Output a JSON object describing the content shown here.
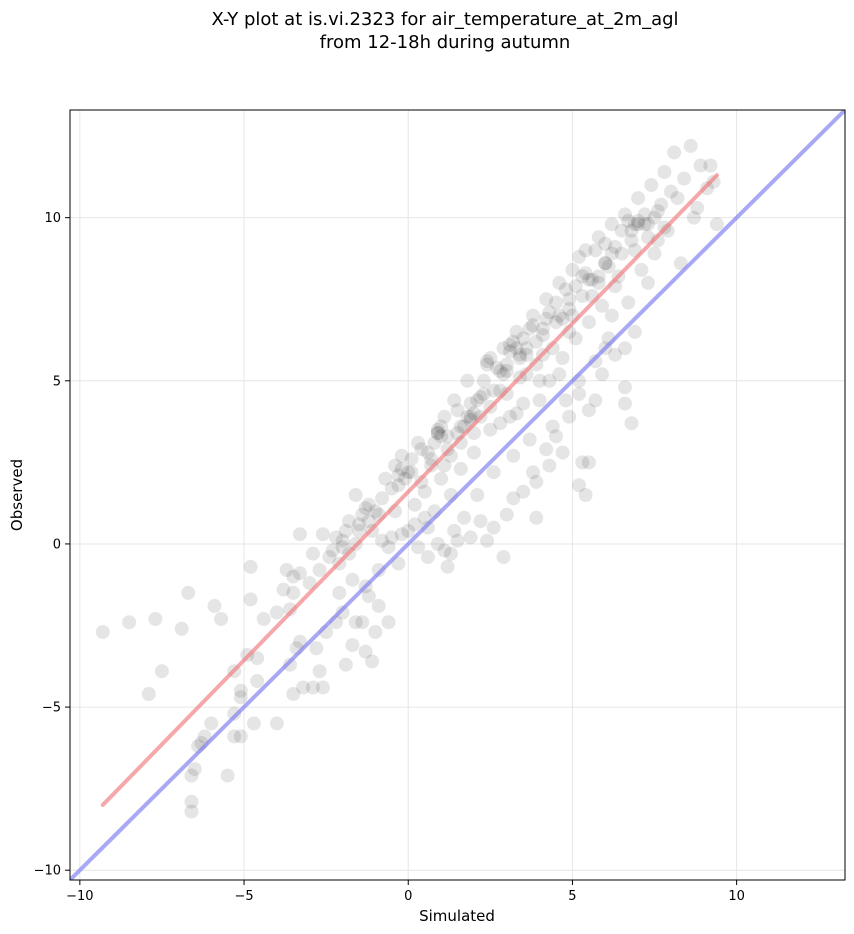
{
  "chart_data": {
    "type": "scatter",
    "title": "X-Y plot at is.vi.2323 for air_temperature_at_2m_agl",
    "subtitle": "from 12-18h during autumn",
    "xlabel": "Simulated",
    "ylabel": "Observed",
    "xlim": [
      -10.3,
      13.3
    ],
    "ylim": [
      -10.3,
      13.3
    ],
    "xticks": [
      -10,
      -5,
      0,
      5,
      10
    ],
    "yticks": [
      -10,
      -5,
      0,
      5,
      10
    ],
    "xtick_labels": [
      "−10",
      "−5",
      "0",
      "5",
      "10"
    ],
    "ytick_labels": [
      "−10",
      "−5",
      "0",
      "5",
      "10"
    ],
    "grid": true,
    "colors": {
      "points": "#000000",
      "fit_line": "#f0787c",
      "identity_line": "#7a7af0",
      "grid": "#e6e6e6"
    },
    "lines": [
      {
        "role": "fit",
        "x": [
          -9.3,
          9.4
        ],
        "y": [
          -8.0,
          11.3
        ]
      },
      {
        "role": "identity",
        "x": [
          -10.3,
          13.3
        ],
        "y": [
          -10.3,
          13.3
        ]
      }
    ],
    "points": [
      [
        -9.3,
        -2.7
      ],
      [
        -8.5,
        -2.4
      ],
      [
        -7.7,
        -2.3
      ],
      [
        -6.7,
        -1.5
      ],
      [
        -6.9,
        -2.6
      ],
      [
        -7.5,
        -3.9
      ],
      [
        -7.9,
        -4.6
      ],
      [
        -5.9,
        -1.9
      ],
      [
        -5.7,
        -2.3
      ],
      [
        -4.8,
        -0.7
      ],
      [
        -4.8,
        -1.7
      ],
      [
        -4.4,
        -2.3
      ],
      [
        -3.7,
        -0.8
      ],
      [
        -3.5,
        -1.5
      ],
      [
        -3.3,
        -0.9
      ],
      [
        -2.6,
        0.3
      ],
      [
        -3.3,
        0.3
      ],
      [
        -2.9,
        -0.3
      ],
      [
        -5.3,
        -3.9
      ],
      [
        -5.1,
        -4.5
      ],
      [
        -4.9,
        -3.4
      ],
      [
        -4.6,
        -4.2
      ],
      [
        -4.6,
        -3.5
      ],
      [
        -4.0,
        -5.5
      ],
      [
        -4.7,
        -5.5
      ],
      [
        -5.1,
        -4.7
      ],
      [
        -5.3,
        -5.2
      ],
      [
        -5.3,
        -5.9
      ],
      [
        -5.1,
        -5.9
      ],
      [
        -5.5,
        -7.1
      ],
      [
        -6.0,
        -5.5
      ],
      [
        -6.2,
        -5.9
      ],
      [
        -6.4,
        -6.2
      ],
      [
        -6.5,
        -6.9
      ],
      [
        -6.6,
        -7.1
      ],
      [
        -6.6,
        -7.9
      ],
      [
        -6.6,
        -8.2
      ],
      [
        -6.3,
        -6.1
      ],
      [
        -3.5,
        -4.6
      ],
      [
        -3.2,
        -4.4
      ],
      [
        -3.3,
        -3.0
      ],
      [
        -2.9,
        -4.4
      ],
      [
        -2.6,
        -4.4
      ],
      [
        -2.7,
        -3.9
      ],
      [
        -3.6,
        -3.7
      ],
      [
        -3.4,
        -3.2
      ],
      [
        -2.8,
        -3.2
      ],
      [
        -2.5,
        -2.7
      ],
      [
        -2.2,
        -2.4
      ],
      [
        -1.9,
        -3.7
      ],
      [
        -1.7,
        -3.1
      ],
      [
        -1.3,
        -3.3
      ],
      [
        -1.1,
        -3.6
      ],
      [
        -1.0,
        -2.7
      ],
      [
        -1.4,
        -2.4
      ],
      [
        -0.9,
        -1.9
      ],
      [
        -0.6,
        -2.4
      ],
      [
        -1.2,
        -1.6
      ],
      [
        -1.7,
        -1.1
      ],
      [
        -2.1,
        -1.5
      ],
      [
        -2.0,
        -2.1
      ],
      [
        -1.6,
        -2.4
      ],
      [
        -1.3,
        -1.3
      ],
      [
        -0.9,
        -0.8
      ],
      [
        -0.3,
        -0.6
      ],
      [
        -3.8,
        -1.4
      ],
      [
        -3.6,
        -2.0
      ],
      [
        -4.0,
        -2.1
      ],
      [
        -3.5,
        -1.0
      ],
      [
        -3.0,
        -1.2
      ],
      [
        -2.7,
        -0.8
      ],
      [
        -2.4,
        -0.4
      ],
      [
        -2.1,
        -0.6
      ],
      [
        -2.0,
        -0.1
      ],
      [
        -1.9,
        0.4
      ],
      [
        -1.6,
        0.0
      ],
      [
        -1.5,
        0.6
      ],
      [
        -1.3,
        1.1
      ],
      [
        -1.6,
        1.5
      ],
      [
        -1.1,
        0.4
      ],
      [
        -0.9,
        0.9
      ],
      [
        -0.8,
        1.4
      ],
      [
        -0.7,
        2.0
      ],
      [
        -0.5,
        0.2
      ],
      [
        -0.4,
        1.0
      ],
      [
        -0.3,
        1.8
      ],
      [
        -0.4,
        2.4
      ],
      [
        -0.2,
        2.7
      ],
      [
        0.0,
        0.4
      ],
      [
        0.2,
        1.2
      ],
      [
        0.1,
        2.2
      ],
      [
        0.3,
        3.1
      ],
      [
        0.5,
        1.6
      ],
      [
        0.6,
        0.5
      ],
      [
        0.8,
        1.0
      ],
      [
        0.7,
        2.4
      ],
      [
        0.9,
        3.4
      ],
      [
        1.0,
        2.0
      ],
      [
        1.1,
        3.9
      ],
      [
        1.2,
        2.9
      ],
      [
        1.3,
        1.5
      ],
      [
        1.4,
        4.4
      ],
      [
        1.5,
        3.4
      ],
      [
        1.6,
        2.3
      ],
      [
        1.8,
        5.0
      ],
      [
        1.9,
        3.9
      ],
      [
        2.0,
        2.8
      ],
      [
        2.1,
        1.5
      ],
      [
        2.2,
        4.5
      ],
      [
        2.4,
        5.6
      ],
      [
        2.5,
        3.5
      ],
      [
        2.6,
        2.2
      ],
      [
        2.8,
        4.7
      ],
      [
        2.9,
        6.0
      ],
      [
        3.0,
        5.3
      ],
      [
        3.1,
        3.9
      ],
      [
        3.2,
        2.7
      ],
      [
        3.3,
        6.5
      ],
      [
        3.4,
        5.1
      ],
      [
        3.5,
        4.3
      ],
      [
        3.6,
        6.0
      ],
      [
        3.7,
        3.2
      ],
      [
        3.8,
        7.0
      ],
      [
        3.9,
        5.5
      ],
      [
        4.0,
        4.4
      ],
      [
        4.1,
        6.4
      ],
      [
        4.2,
        7.5
      ],
      [
        4.3,
        5.0
      ],
      [
        4.4,
        3.6
      ],
      [
        4.5,
        6.8
      ],
      [
        4.6,
        8.0
      ],
      [
        4.7,
        5.7
      ],
      [
        4.8,
        4.4
      ],
      [
        4.9,
        7.2
      ],
      [
        5.0,
        8.4
      ],
      [
        5.1,
        6.3
      ],
      [
        5.2,
        5.0
      ],
      [
        5.3,
        7.6
      ],
      [
        5.4,
        9.0
      ],
      [
        5.5,
        6.8
      ],
      [
        5.6,
        8.1
      ],
      [
        5.7,
        5.6
      ],
      [
        5.8,
        9.4
      ],
      [
        5.9,
        7.3
      ],
      [
        6.0,
        8.6
      ],
      [
        6.1,
        6.3
      ],
      [
        6.2,
        9.8
      ],
      [
        6.3,
        7.9
      ],
      [
        6.5,
        8.9
      ],
      [
        6.6,
        10.1
      ],
      [
        6.7,
        7.4
      ],
      [
        6.8,
        9.3
      ],
      [
        7.0,
        10.6
      ],
      [
        7.1,
        8.4
      ],
      [
        7.2,
        9.8
      ],
      [
        7.4,
        11.0
      ],
      [
        7.5,
        8.9
      ],
      [
        7.6,
        10.2
      ],
      [
        7.8,
        11.4
      ],
      [
        7.9,
        9.6
      ],
      [
        8.1,
        12.0
      ],
      [
        8.2,
        10.6
      ],
      [
        8.4,
        11.2
      ],
      [
        8.6,
        12.2
      ],
      [
        8.7,
        10.0
      ],
      [
        8.9,
        11.6
      ],
      [
        9.1,
        10.9
      ],
      [
        9.2,
        11.6
      ],
      [
        9.4,
        9.8
      ],
      [
        9.3,
        11.1
      ],
      [
        8.8,
        10.3
      ],
      [
        8.3,
        8.6
      ],
      [
        7.6,
        9.3
      ],
      [
        7.3,
        8.0
      ],
      [
        6.9,
        6.5
      ],
      [
        6.6,
        6.0
      ],
      [
        6.2,
        7.0
      ],
      [
        5.9,
        5.2
      ],
      [
        5.7,
        4.4
      ],
      [
        5.5,
        4.1
      ],
      [
        5.3,
        2.5
      ],
      [
        5.4,
        1.5
      ],
      [
        5.2,
        1.8
      ],
      [
        5.5,
        2.5
      ],
      [
        6.8,
        3.7
      ],
      [
        6.6,
        4.8
      ],
      [
        6.6,
        4.3
      ],
      [
        6.3,
        5.8
      ],
      [
        6.0,
        6.0
      ],
      [
        5.2,
        4.6
      ],
      [
        4.9,
        3.9
      ],
      [
        4.5,
        3.3
      ],
      [
        4.3,
        2.4
      ],
      [
        4.7,
        2.8
      ],
      [
        4.2,
        2.9
      ],
      [
        3.8,
        2.2
      ],
      [
        3.9,
        1.9
      ],
      [
        3.5,
        1.6
      ],
      [
        3.2,
        1.4
      ],
      [
        3.0,
        0.9
      ],
      [
        3.9,
        0.8
      ],
      [
        2.9,
        -0.4
      ],
      [
        2.6,
        0.5
      ],
      [
        2.4,
        0.1
      ],
      [
        2.2,
        0.7
      ],
      [
        1.9,
        0.2
      ],
      [
        1.5,
        0.1
      ],
      [
        1.7,
        0.8
      ],
      [
        1.3,
        -0.3
      ],
      [
        1.2,
        -0.7
      ],
      [
        1.4,
        0.4
      ],
      [
        0.9,
        0.0
      ],
      [
        0.6,
        -0.4
      ],
      [
        0.3,
        -0.1
      ],
      [
        1.1,
        -0.2
      ],
      [
        0.5,
        0.8
      ],
      [
        -1.5,
        0.4
      ],
      [
        -1.2,
        0.7
      ],
      [
        -0.8,
        0.1
      ],
      [
        -0.6,
        -0.1
      ],
      [
        -2.3,
        -0.2
      ],
      [
        -2.2,
        0.2
      ],
      [
        -1.8,
        -0.3
      ],
      [
        -1.8,
        0.7
      ],
      [
        -0.2,
        0.3
      ],
      [
        0.2,
        0.6
      ],
      [
        0.4,
        1.9
      ],
      [
        0.7,
        2.6
      ],
      [
        0.8,
        3.1
      ],
      [
        1.0,
        3.6
      ],
      [
        1.1,
        2.4
      ],
      [
        1.3,
        2.7
      ],
      [
        1.6,
        3.1
      ],
      [
        1.7,
        3.6
      ],
      [
        1.9,
        4.3
      ],
      [
        2.0,
        3.4
      ],
      [
        2.2,
        3.9
      ],
      [
        2.3,
        5.0
      ],
      [
        2.5,
        4.2
      ],
      [
        2.7,
        5.4
      ],
      [
        2.8,
        3.7
      ],
      [
        3.0,
        4.6
      ],
      [
        3.1,
        5.9
      ],
      [
        3.3,
        4.0
      ],
      [
        3.4,
        5.7
      ],
      [
        3.6,
        5.2
      ],
      [
        3.7,
        6.6
      ],
      [
        3.9,
        6.2
      ],
      [
        4.0,
        5.0
      ],
      [
        4.1,
        5.8
      ],
      [
        4.2,
        6.9
      ],
      [
        4.4,
        6.0
      ],
      [
        4.5,
        7.4
      ],
      [
        4.6,
        5.2
      ],
      [
        4.8,
        7.8
      ],
      [
        4.9,
        6.5
      ],
      [
        5.0,
        7.0
      ],
      [
        5.1,
        7.9
      ],
      [
        5.2,
        8.8
      ],
      [
        5.4,
        8.3
      ],
      [
        5.6,
        7.6
      ],
      [
        5.7,
        9.0
      ],
      [
        5.8,
        8.0
      ],
      [
        6.0,
        9.2
      ],
      [
        6.1,
        8.5
      ],
      [
        6.3,
        9.1
      ],
      [
        6.4,
        8.2
      ],
      [
        6.5,
        9.6
      ],
      [
        6.7,
        9.9
      ],
      [
        6.9,
        9.0
      ],
      [
        7.0,
        9.8
      ],
      [
        7.2,
        10.1
      ],
      [
        7.3,
        9.4
      ],
      [
        7.5,
        10.0
      ],
      [
        7.7,
        10.4
      ],
      [
        7.8,
        9.7
      ],
      [
        8.0,
        10.8
      ],
      [
        0.9,
        3.4
      ],
      [
        0.9,
        3.5
      ],
      [
        1.0,
        3.3
      ],
      [
        2.8,
        5.3
      ],
      [
        2.9,
        5.2
      ],
      [
        3.0,
        5.5
      ],
      [
        3.2,
        6.2
      ],
      [
        3.3,
        6.0
      ],
      [
        3.1,
        6.1
      ],
      [
        -0.3,
        2.1
      ],
      [
        -0.2,
        2.3
      ],
      [
        -0.1,
        2.0
      ],
      [
        1.9,
        3.8
      ],
      [
        2.0,
        4.0
      ],
      [
        1.8,
        3.9
      ],
      [
        4.6,
        7.0
      ],
      [
        4.7,
        6.9
      ],
      [
        5.8,
        8.2
      ],
      [
        6.9,
        9.8
      ],
      [
        7.0,
        9.9
      ],
      [
        2.4,
        5.5
      ],
      [
        2.5,
        5.7
      ],
      [
        3.5,
        6.3
      ],
      [
        -1.2,
        1.2
      ],
      [
        -1.0,
        1.0
      ],
      [
        0.4,
        2.9
      ],
      [
        0.6,
        2.8
      ],
      [
        1.5,
        4.1
      ],
      [
        2.6,
        4.7
      ],
      [
        3.6,
        5.8
      ],
      [
        4.1,
        6.6
      ],
      [
        5.5,
        8.1
      ],
      [
        6.2,
        8.9
      ],
      [
        -0.5,
        1.7
      ],
      [
        0.1,
        2.6
      ],
      [
        1.2,
        3.3
      ],
      [
        2.1,
        4.4
      ],
      [
        3.8,
        6.7
      ],
      [
        4.3,
        7.1
      ],
      [
        5.3,
        8.2
      ],
      [
        6.8,
        9.6
      ],
      [
        -2.0,
        0.1
      ],
      [
        -1.4,
        0.9
      ],
      [
        0.0,
        2.2
      ],
      [
        1.6,
        3.6
      ],
      [
        2.3,
        4.6
      ],
      [
        3.4,
        5.8
      ],
      [
        4.9,
        7.5
      ],
      [
        6.0,
        8.6
      ],
      [
        7.3,
        9.8
      ]
    ]
  }
}
